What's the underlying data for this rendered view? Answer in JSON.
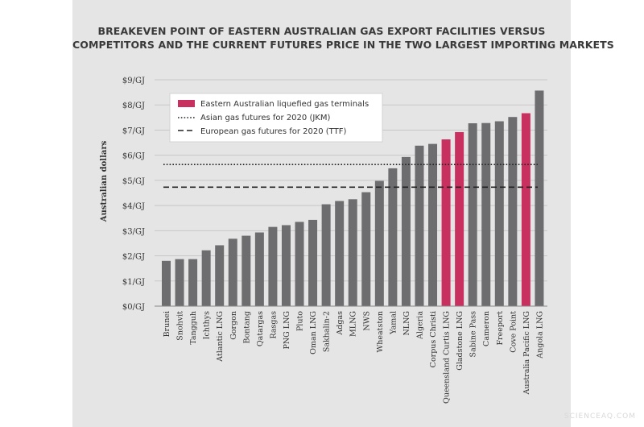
{
  "chart_data": {
    "type": "bar",
    "title_line1": "BREAKEVEN POINT OF EASTERN AUSTRALIAN GAS EXPORT FACILITIES VERSUS",
    "title_line2": "COMPETITORS AND THE CURRENT FUTURES PRICE IN THE TWO LARGEST IMPORTING MARKETS",
    "ylabel": "Australian dollars",
    "xlabel": "",
    "ylim": [
      0,
      9
    ],
    "yticks": [
      "$0/GJ",
      "$1/GJ",
      "$2/GJ",
      "$3/GJ",
      "$4/GJ",
      "$5/GJ",
      "$6/GJ",
      "$7/GJ",
      "$8/GJ",
      "$9/GJ"
    ],
    "grid": "horizontal",
    "legend_placement": "top-left",
    "categories": [
      "Brunei",
      "Snohvit",
      "Tangguh",
      "Ichthys",
      "Atlantic LNG",
      "Gorgon",
      "Bontang",
      "Qatargas",
      "Rasgas",
      "PNG LNG",
      "Pluto",
      "Oman LNG",
      "Sakhalin-2",
      "Adgas",
      "MLNG",
      "NWS",
      "Wheatston",
      "Yamal",
      "NLNG",
      "Algeria",
      "Corpus Christi",
      "Queensland Curtis LNG",
      "Gladstone LNG",
      "Sabine Pass",
      "Cameron",
      "Freeport",
      "Cove Point",
      "Australia Pacific LNG",
      "Angola LNG"
    ],
    "values": [
      1.8,
      1.87,
      1.87,
      2.22,
      2.42,
      2.68,
      2.8,
      2.93,
      3.15,
      3.22,
      3.35,
      3.43,
      4.05,
      4.18,
      4.25,
      4.53,
      4.98,
      5.48,
      5.93,
      6.38,
      6.45,
      6.63,
      6.92,
      7.27,
      7.28,
      7.35,
      7.52,
      7.67,
      8.57
    ],
    "highlighted": [
      "Queensland Curtis LNG",
      "Gladstone LNG",
      "Australia Pacific LNG"
    ],
    "reference_lines": [
      {
        "name": "Asian gas futures for 2020 (JKM)",
        "value": 5.63,
        "style": "dotted"
      },
      {
        "name": "European gas futures for 2020 (TTF)",
        "value": 4.73,
        "style": "dashed"
      }
    ],
    "legend": [
      "Eastern Australian liquefied gas terminals",
      "Asian gas futures for 2020 (JKM)",
      "European gas futures for 2020 (TTF)"
    ],
    "colors": {
      "bar": "#6d6c6e",
      "highlight": "#c8305f",
      "grid": "#c8c7c8",
      "text": "#333333",
      "background": "#e6e5e6"
    }
  },
  "watermark": "SCIENCEAQ.COM"
}
